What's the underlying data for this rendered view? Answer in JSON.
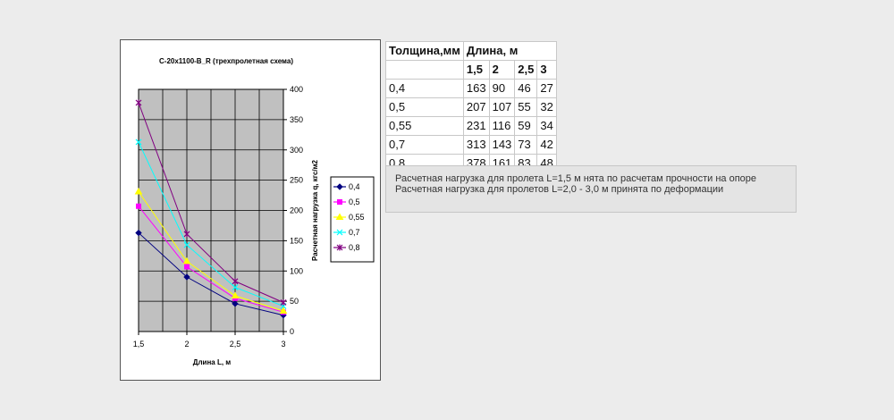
{
  "colors": {
    "background": "#ececec",
    "plot_area": "#c0c0c0",
    "grid": "#000000"
  },
  "chart_data": {
    "type": "line",
    "title": "С-20х1100-В_R  (трехпролетная схема)",
    "xlabel": "Длина L, м",
    "ylabel": "Расчетная нагрузка q, кгс/м2",
    "x": [
      1.5,
      2,
      2.5,
      3
    ],
    "x_tick_labels": [
      "1,5",
      "2",
      "2,5",
      "3"
    ],
    "xlim": [
      1.5,
      3
    ],
    "ylim": [
      0,
      400
    ],
    "y_ticks": [
      0,
      50,
      100,
      150,
      200,
      250,
      300,
      350,
      400
    ],
    "y_axis_side": "right",
    "grid": true,
    "legend_position": "right",
    "series": [
      {
        "name": "0,4",
        "values": [
          163,
          90,
          46,
          27
        ],
        "color": "#000080",
        "marker": "diamond"
      },
      {
        "name": "0,5",
        "values": [
          207,
          107,
          55,
          32
        ],
        "color": "#ff00ff",
        "marker": "square"
      },
      {
        "name": "0,55",
        "values": [
          231,
          116,
          59,
          34
        ],
        "color": "#ffff00",
        "marker": "triangle"
      },
      {
        "name": "0,7",
        "values": [
          313,
          143,
          73,
          42
        ],
        "color": "#00ffff",
        "marker": "x"
      },
      {
        "name": "0,8",
        "values": [
          378,
          161,
          83,
          48
        ],
        "color": "#800080",
        "marker": "star"
      }
    ]
  },
  "table": {
    "header_thickness": "Толщина,мм",
    "header_length": "Длина, м",
    "lengths": [
      "1,5",
      "2",
      "2,5",
      "3"
    ],
    "rows": [
      {
        "thickness": "0,4",
        "values": [
          "163",
          "90",
          "46",
          "27"
        ]
      },
      {
        "thickness": "0,5",
        "values": [
          "207",
          "107",
          "55",
          "32"
        ]
      },
      {
        "thickness": "0,55",
        "values": [
          "231",
          "116",
          "59",
          "34"
        ]
      },
      {
        "thickness": "0,7",
        "values": [
          "313",
          "143",
          "73",
          "42"
        ]
      },
      {
        "thickness": "0,8",
        "values": [
          "378",
          "161",
          "83",
          "48"
        ]
      }
    ]
  },
  "note": {
    "line1": "Расчетная нагрузка для пролета L=1,5 м нята по расчетам прочности на опоре",
    "line2": "Расчетная нагрузка для пролетов L=2,0 - 3,0 м принята по деформации"
  }
}
